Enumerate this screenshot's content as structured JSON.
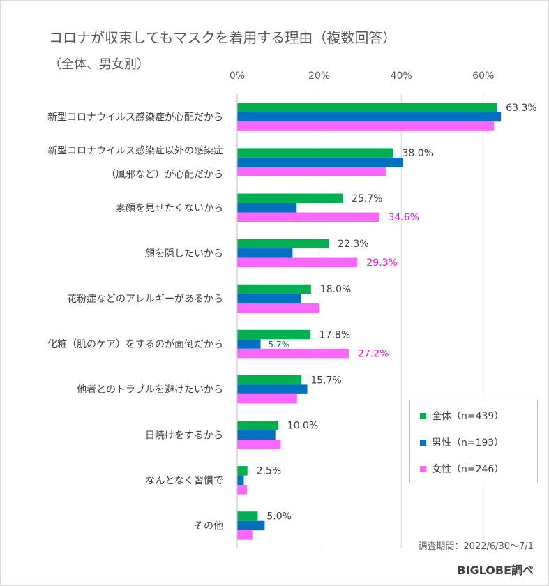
{
  "title": "コロナが収束してもマスクを着用する理由（複数回答）",
  "subtitle": "（全体、男女別）",
  "survey_period": "調査期間：2022/6/30～7/1",
  "source": "BIGLOBE調べ",
  "colors": {
    "total": "#00b050",
    "male": "#0070c0",
    "female": "#ff66ff",
    "female_label": "#ff00ff",
    "male_label": "#0070c0",
    "total_label": "#404040"
  },
  "chart_data": {
    "type": "bar",
    "orientation": "horizontal",
    "xlim": [
      0,
      67
    ],
    "xticks": [
      "0%",
      "20%",
      "40%",
      "60%"
    ],
    "xtick_values": [
      0,
      20,
      40,
      60
    ],
    "grid": true,
    "legend_position": "bottom-right",
    "categories": [
      [
        "新型コロナウイルス感染症が心配だから"
      ],
      [
        "新型コロナウイルス感染症以外の感染症",
        "（風邪など）が心配だから"
      ],
      [
        "素顔を見せたくないから"
      ],
      [
        "顔を隠したいから"
      ],
      [
        "花粉症などのアレルギーがあるから"
      ],
      [
        "化粧（肌のケア）をするのが面倒だから"
      ],
      [
        "他者とのトラブルを避けたいから"
      ],
      [
        "日焼けをするから"
      ],
      [
        "なんとなく習慣で"
      ],
      [
        "その他"
      ]
    ],
    "series": [
      {
        "name": "全体（n=439）",
        "key": "total",
        "values": [
          63.3,
          38.0,
          25.7,
          22.3,
          18.0,
          17.8,
          15.7,
          10.0,
          2.5,
          5.0
        ],
        "labels": [
          "63.3%",
          "38.0%",
          "25.7%",
          "22.3%",
          "18.0%",
          "17.8%",
          "15.7%",
          "10.0%",
          "2.5%",
          "5.0%"
        ]
      },
      {
        "name": "男性（n=193）",
        "key": "male",
        "values": [
          64.3,
          40.4,
          14.5,
          13.5,
          15.5,
          5.7,
          17.1,
          9.3,
          1.6,
          6.7
        ],
        "labels": [
          "",
          "",
          "",
          "",
          "",
          "5.7%",
          "",
          "",
          "",
          ""
        ]
      },
      {
        "name": "女性（n=246）",
        "key": "female",
        "values": [
          62.6,
          36.2,
          34.6,
          29.3,
          19.9,
          27.2,
          14.6,
          10.6,
          2.4,
          3.7
        ],
        "labels": [
          "",
          "",
          "34.6%",
          "29.3%",
          "",
          "27.2%",
          "",
          "",
          "",
          ""
        ]
      }
    ]
  }
}
